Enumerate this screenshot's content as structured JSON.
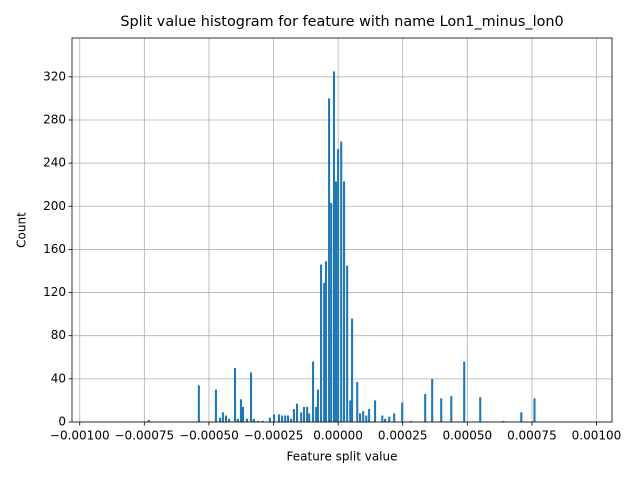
{
  "chart_data": {
    "type": "bar",
    "title": "Split value histogram for feature with name Lon1_minus_lon0",
    "xlabel": "Feature split value",
    "ylabel": "Count",
    "color": "#1f77b4",
    "grid": true,
    "bar_width": 8e-06,
    "x": [
      -0.000733,
      -0.000539,
      -0.000473,
      -0.000457,
      -0.000446,
      -0.000434,
      -0.000422,
      -0.000399,
      -0.000388,
      -0.000376,
      -0.000368,
      -0.000353,
      -0.000337,
      -0.000326,
      -0.00031,
      -0.000291,
      -0.000264,
      -0.000248,
      -0.000229,
      -0.000217,
      -0.000205,
      -0.000194,
      -0.000182,
      -0.000171,
      -0.000159,
      -0.000143,
      -0.000132,
      -0.00012,
      -0.000112,
      -9.7e-05,
      -8.5e-05,
      -7.8e-05,
      -6.6e-05,
      -5.4e-05,
      -4.7e-05,
      -3.5e-05,
      -2.7e-05,
      -1.6e-05,
      -8e-06,
      0,
      1.2e-05,
      2.3e-05,
      3.5e-05,
      4.7e-05,
      5.4e-05,
      7.4e-05,
      8.5e-05,
      9.7e-05,
      0.000109,
      0.00012,
      0.000143,
      0.000171,
      0.000182,
      0.000198,
      0.000217,
      0.000248,
      0.000283,
      0.000337,
      0.000364,
      0.000399,
      0.000438,
      0.000488,
      0.00055,
      0.00064,
      0.000709,
      0.00076
    ],
    "values": [
      2,
      34,
      30,
      4,
      9,
      6,
      3,
      50,
      3,
      21,
      14,
      3,
      46,
      3,
      1,
      1,
      4,
      7,
      7,
      6,
      6,
      6,
      3,
      12,
      17,
      9,
      14,
      14,
      8,
      56,
      14,
      30,
      146,
      129,
      149,
      300,
      203,
      325,
      223,
      253,
      260,
      223,
      145,
      20,
      96,
      37,
      8,
      10,
      6,
      12,
      20,
      6,
      3,
      5,
      8,
      18,
      1,
      26,
      40,
      22,
      24,
      56,
      23,
      1,
      9,
      22
    ],
    "xlim": [
      -0.00103,
      0.00106
    ],
    "xticks": [
      {
        "value": -0.001,
        "label": "−0.00100"
      },
      {
        "value": -0.00075,
        "label": "−0.00075"
      },
      {
        "value": -0.0005,
        "label": "−0.00050"
      },
      {
        "value": -0.00025,
        "label": "−0.00025"
      },
      {
        "value": 0,
        "label": "0.00000"
      },
      {
        "value": 0.00025,
        "label": "0.00025"
      },
      {
        "value": 0.0005,
        "label": "0.00050"
      },
      {
        "value": 0.00075,
        "label": "0.00075"
      },
      {
        "value": 0.001,
        "label": "0.00100"
      }
    ],
    "ylim": [
      0,
      356
    ],
    "yticks": [
      0,
      40,
      80,
      120,
      160,
      200,
      240,
      280,
      320
    ]
  }
}
